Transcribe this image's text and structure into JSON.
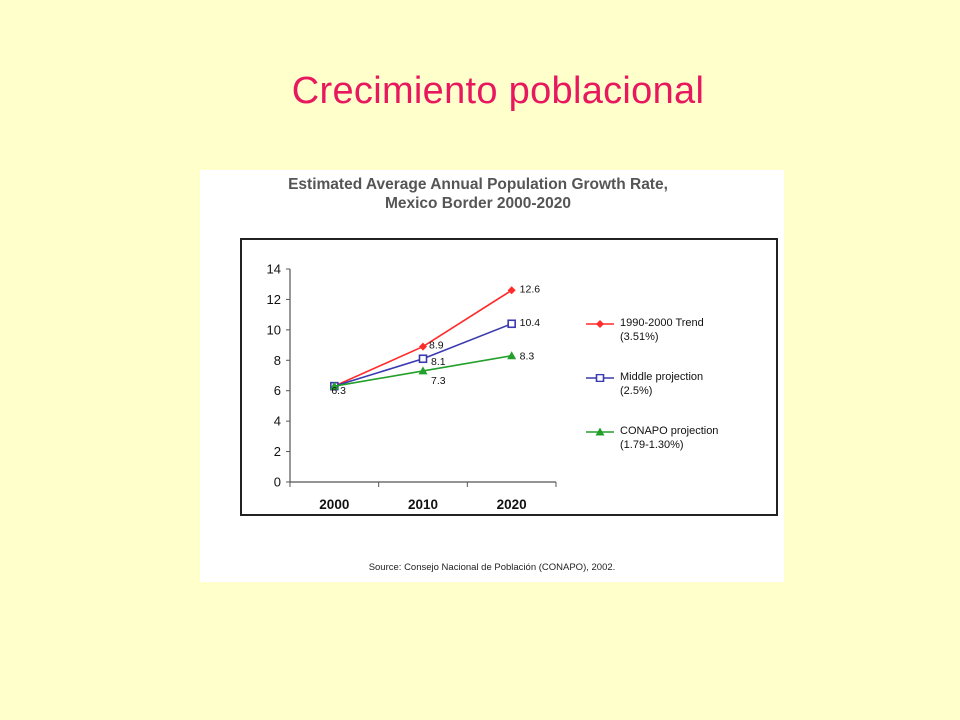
{
  "slide": {
    "title": "Crecimiento poblacional"
  },
  "figure": {
    "title_line1": "Estimated Average Annual Population Growth Rate,",
    "title_line2": "Mexico Border 2000-2020",
    "source": "Source: Consejo Nacional de Población (CONAPO), 2002."
  },
  "chart_data": {
    "type": "line",
    "title": "Estimated Average Annual Population Growth Rate, Mexico Border 2000-2020",
    "categories": [
      "2000",
      "2010",
      "2020"
    ],
    "ylim": [
      0,
      14
    ],
    "yticks": [
      0,
      2,
      4,
      6,
      8,
      10,
      12,
      14
    ],
    "grid": false,
    "legend_position": "right",
    "series": [
      {
        "name": "1990-2000 Trend",
        "name_detail": "(3.51%)",
        "values": [
          6.3,
          8.9,
          12.6
        ],
        "labels": [
          "",
          "8.9",
          "12.6"
        ],
        "color": "#FF2A2A",
        "marker": "diamond"
      },
      {
        "name": "Middle projection",
        "name_detail": "(2.5%)",
        "values": [
          6.3,
          8.1,
          10.4
        ],
        "labels": [
          "",
          "8.1",
          "10.4"
        ],
        "color": "#3A3AB0",
        "marker": "square"
      },
      {
        "name": "CONAPO projection",
        "name_detail": "(1.79-1.30%)",
        "values": [
          6.3,
          7.3,
          8.3
        ],
        "labels": [
          "6.3",
          "7.3",
          "8.3"
        ],
        "color": "#22A02A",
        "marker": "triangle"
      }
    ]
  }
}
